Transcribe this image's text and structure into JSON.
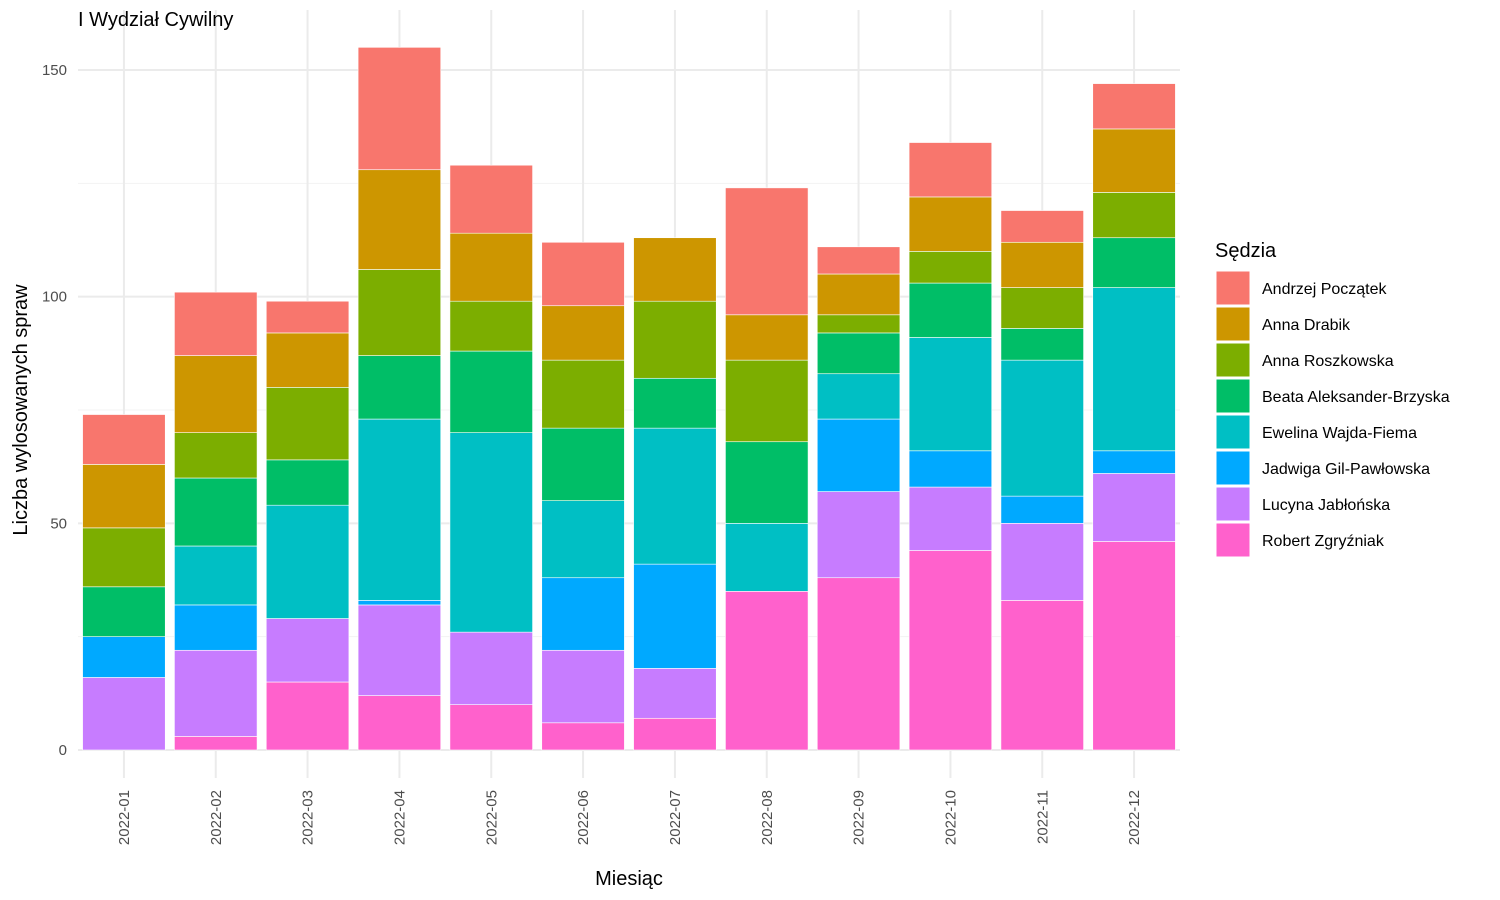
{
  "chart_data": {
    "type": "bar",
    "stacked": true,
    "title": "I Wydział Cywilny",
    "xlabel": "Miesiąc",
    "ylabel": "Liczba wylosowanych spraw",
    "ylim": [
      0,
      160
    ],
    "yticks": [
      0,
      50,
      100,
      150
    ],
    "grid": true,
    "legend_title": "Sędzia",
    "legend_position": "right",
    "categories": [
      "2022-01",
      "2022-02",
      "2022-03",
      "2022-04",
      "2022-05",
      "2022-06",
      "2022-07",
      "2022-08",
      "2022-09",
      "2022-10",
      "2022-11",
      "2022-12"
    ],
    "series": [
      {
        "name": "Robert Zgryźniak",
        "color": "#FF61CC",
        "values": [
          0,
          3,
          15,
          12,
          10,
          6,
          7,
          35,
          38,
          44,
          33,
          46
        ]
      },
      {
        "name": "Lucyna Jabłońska",
        "color": "#C77CFF",
        "values": [
          16,
          19,
          14,
          20,
          16,
          16,
          11,
          0,
          19,
          14,
          17,
          15
        ]
      },
      {
        "name": "Jadwiga Gil-Pawłowska",
        "color": "#00A9FF",
        "values": [
          9,
          10,
          0,
          1,
          0,
          16,
          23,
          0,
          16,
          8,
          6,
          5
        ]
      },
      {
        "name": "Ewelina Wajda-Fiema",
        "color": "#00BFC4",
        "values": [
          0,
          13,
          25,
          40,
          44,
          17,
          30,
          15,
          10,
          25,
          30,
          36
        ]
      },
      {
        "name": "Beata Aleksander-Brzyska",
        "color": "#00BE67",
        "values": [
          11,
          15,
          10,
          14,
          18,
          16,
          11,
          18,
          9,
          12,
          7,
          11
        ]
      },
      {
        "name": "Anna Roszkowska",
        "color": "#7CAE00",
        "values": [
          13,
          10,
          16,
          19,
          11,
          15,
          17,
          18,
          4,
          7,
          9,
          10
        ]
      },
      {
        "name": "Anna Drabik",
        "color": "#CD9600",
        "values": [
          14,
          17,
          12,
          22,
          15,
          12,
          14,
          10,
          9,
          12,
          10,
          14
        ]
      },
      {
        "name": "Andrzej Początek",
        "color": "#F8766D",
        "values": [
          11,
          14,
          7,
          27,
          15,
          14,
          0,
          28,
          6,
          12,
          7,
          10
        ]
      }
    ],
    "legend_order": [
      "Andrzej Początek",
      "Anna Drabik",
      "Anna Roszkowska",
      "Beata Aleksander-Brzyska",
      "Ewelina Wajda-Fiema",
      "Jadwiga Gil-Pawłowska",
      "Lucyna Jabłońska",
      "Robert Zgryźniak"
    ]
  }
}
